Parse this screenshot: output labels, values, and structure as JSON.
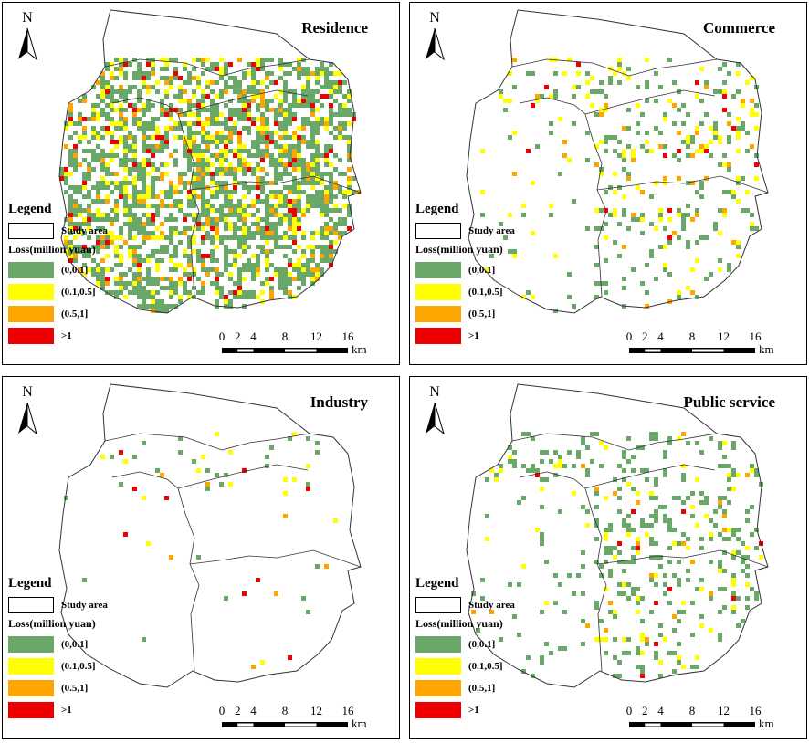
{
  "panels": [
    {
      "title": "Residence",
      "density": 1.0,
      "weights": [
        0.68,
        0.18,
        0.09,
        0.05
      ],
      "seed": 11,
      "region": "full"
    },
    {
      "title": "Commerce",
      "density": 0.28,
      "weights": [
        0.55,
        0.32,
        0.08,
        0.05
      ],
      "seed": 23,
      "region": "east"
    },
    {
      "title": "Industry",
      "density": 0.08,
      "weights": [
        0.45,
        0.35,
        0.12,
        0.08
      ],
      "seed": 37,
      "region": "north"
    },
    {
      "title": "Public service",
      "density": 0.3,
      "weights": [
        0.72,
        0.22,
        0.04,
        0.02
      ],
      "seed": 51,
      "region": "east"
    }
  ],
  "north_label": "N",
  "legend": {
    "title": "Legend",
    "study_area": "Study area",
    "loss_title": "Loss(million yuan)",
    "classes": [
      {
        "label": "(0,0.1]",
        "color": "#6aa86a"
      },
      {
        "label": "(0.1,0.5]",
        "color": "#ffff00"
      },
      {
        "label": "(0.5,1]",
        "color": "#ffa500"
      },
      {
        "label": ">1",
        "color": "#ee0000"
      }
    ]
  },
  "scale": {
    "ticks": [
      "0",
      "2",
      "4",
      "8",
      "12",
      "16"
    ],
    "tick_km": [
      0,
      2,
      4,
      8,
      12,
      16
    ],
    "unit": "km"
  },
  "colors": {
    "outline": "#333333",
    "background": "#ffffff"
  }
}
